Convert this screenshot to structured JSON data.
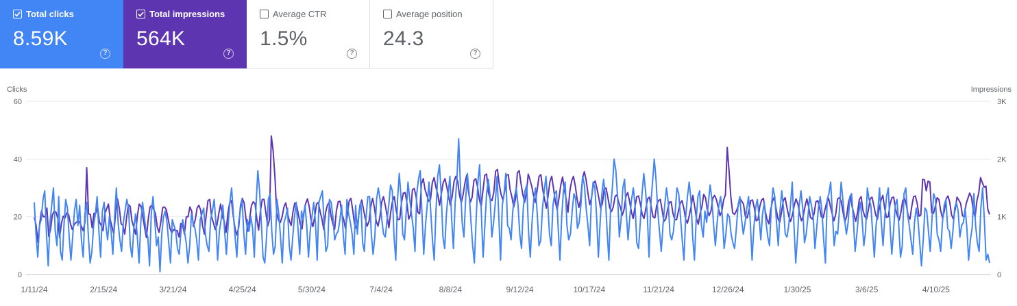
{
  "cards": [
    {
      "label": "Total clicks",
      "value": "8.59K",
      "checked": true,
      "color": "#4285f4"
    },
    {
      "label": "Total impressions",
      "value": "564K",
      "checked": true,
      "color": "#5e35b1"
    },
    {
      "label": "Average CTR",
      "value": "1.5%",
      "checked": false,
      "color": "#ffffff"
    },
    {
      "label": "Average position",
      "value": "24.3",
      "checked": false,
      "color": "#ffffff"
    }
  ],
  "help_glyph": "?",
  "colors": {
    "clicks": "#4285f4",
    "impressions": "#5e35b1",
    "grid": "#e8eaed",
    "axis_text": "#5f6368"
  },
  "chart_data": {
    "type": "line",
    "left_axis": {
      "label": "Clicks",
      "ticks": [
        0,
        20,
        40,
        60
      ],
      "range": [
        0,
        60
      ]
    },
    "right_axis": {
      "label": "Impressions",
      "ticks": [
        "0",
        "1K",
        "2K",
        "3K"
      ],
      "range": [
        0,
        3000
      ]
    },
    "x_tick_labels": [
      "1/11/24",
      "2/15/24",
      "3/21/24",
      "4/25/24",
      "5/30/24",
      "7/4/24",
      "8/8/24",
      "9/12/24",
      "10/17/24",
      "11/21/24",
      "12/26/24",
      "1/30/25",
      "3/6/25",
      "4/10/25"
    ],
    "x_start": "2024-01-11",
    "x_end": "2025-05-07",
    "grid": true,
    "series": [
      {
        "name": "Clicks",
        "axis": "left",
        "color": "#4285f4",
        "values": [
          25,
          14,
          6,
          17,
          19,
          26,
          29,
          14,
          3,
          18,
          24,
          30,
          15,
          10,
          27,
          8,
          5,
          17,
          26,
          23,
          13,
          5,
          13,
          22,
          26,
          17,
          24,
          12,
          6,
          21,
          25,
          13,
          4,
          8,
          17,
          21,
          27,
          15,
          6,
          22,
          25,
          17,
          12,
          20,
          15,
          7,
          20,
          30,
          18,
          12,
          8,
          18,
          22,
          26,
          23,
          10,
          6,
          16,
          21,
          13,
          4,
          18,
          25,
          20,
          15,
          13,
          3,
          21,
          27,
          19,
          10,
          13,
          1,
          14,
          20,
          22,
          18,
          11,
          4,
          19,
          17,
          15,
          9,
          7,
          15,
          19,
          15,
          11,
          4,
          10,
          21,
          18,
          16,
          12,
          5,
          19,
          21,
          23,
          14,
          10,
          8,
          19,
          22,
          26,
          18,
          5,
          15,
          19,
          24,
          15,
          7,
          17,
          25,
          30,
          21,
          13,
          6,
          18,
          22,
          26,
          14,
          7,
          19,
          15,
          20,
          16,
          6,
          24,
          36,
          29,
          18,
          6,
          4,
          13,
          26,
          28,
          15,
          7,
          10,
          26,
          21,
          13,
          4,
          18,
          20,
          23,
          10,
          5,
          13,
          20,
          25,
          16,
          7,
          22,
          19,
          24,
          17,
          6,
          15,
          20,
          25,
          18,
          5,
          25,
          27,
          29,
          17,
          8,
          10,
          26,
          25,
          20,
          12,
          14,
          15,
          19,
          24,
          13,
          7,
          26,
          21,
          18,
          14,
          7,
          24,
          14,
          22,
          25,
          11,
          8,
          20,
          27,
          27,
          14,
          7,
          13,
          26,
          30,
          26,
          19,
          14,
          13,
          19,
          24,
          31,
          29,
          13,
          5,
          26,
          35,
          27,
          14,
          12,
          22,
          32,
          26,
          21,
          16,
          8,
          28,
          33,
          36,
          21,
          7,
          17,
          24,
          32,
          22,
          12,
          5,
          22,
          34,
          38,
          28,
          13,
          9,
          21,
          28,
          34,
          19,
          9,
          25,
          33,
          47,
          31,
          18,
          13,
          26,
          35,
          28,
          19,
          10,
          4,
          19,
          32,
          38,
          21,
          6,
          17,
          28,
          33,
          27,
          13,
          18,
          25,
          34,
          20,
          5,
          24,
          28,
          35,
          17,
          16,
          12,
          22,
          27,
          30,
          24,
          14,
          9,
          23,
          29,
          31,
          15,
          6,
          18,
          26,
          30,
          21,
          10,
          12,
          23,
          29,
          34,
          25,
          14,
          10,
          24,
          28,
          29,
          16,
          5,
          20,
          29,
          32,
          17,
          12,
          14,
          22,
          28,
          26,
          16,
          18,
          24,
          34,
          31,
          23,
          17,
          10,
          26,
          32,
          30,
          20,
          6,
          18,
          28,
          33,
          27,
          15,
          5,
          23,
          30,
          40,
          36,
          27,
          13,
          19,
          30,
          33,
          21,
          12,
          20,
          26,
          30,
          24,
          11,
          9,
          18,
          28,
          35,
          29,
          21,
          6,
          24,
          32,
          40,
          33,
          22,
          15,
          8,
          17,
          24,
          30,
          25,
          14,
          12,
          15,
          22,
          30,
          28,
          20,
          12,
          5,
          20,
          27,
          32,
          26,
          13,
          5,
          19,
          27,
          29,
          17,
          13,
          22,
          18,
          25,
          31,
          26,
          17,
          10,
          18,
          24,
          27,
          20,
          9,
          14,
          21,
          20,
          14,
          11,
          9,
          16,
          24,
          27,
          19,
          14,
          18,
          23,
          27,
          18,
          5,
          16,
          23,
          26,
          20,
          12,
          21,
          25,
          18,
          13,
          10,
          23,
          30,
          27,
          18,
          10,
          22,
          29,
          23,
          14,
          13,
          17,
          24,
          32,
          17,
          4,
          13,
          24,
          29,
          23,
          11,
          14,
          20,
          27,
          24,
          20,
          9,
          16,
          23,
          27,
          22,
          12,
          4,
          26,
          28,
          32,
          21,
          10,
          15,
          14,
          22,
          32,
          26,
          19,
          14,
          18,
          27,
          28,
          19,
          8,
          14,
          21,
          25,
          19,
          10,
          15,
          30,
          26,
          24,
          15,
          6,
          17,
          22,
          30,
          18,
          10,
          20,
          27,
          30,
          17,
          7,
          15,
          24,
          26,
          17,
          6,
          10,
          28,
          30,
          21,
          17,
          12,
          7,
          18,
          23,
          19,
          11,
          3,
          12,
          23,
          22,
          15,
          8,
          19,
          28,
          26,
          14,
          12,
          8,
          18,
          24,
          26,
          16,
          15,
          9,
          15,
          23,
          25,
          22,
          13,
          17,
          18,
          23,
          16,
          5,
          12,
          16,
          28,
          17,
          11,
          8,
          23,
          30,
          19,
          5,
          7,
          4
        ]
      },
      {
        "name": "Impressions",
        "axis": "right",
        "color": "#5e35b1",
        "values": [
          990,
          860,
          560,
          880,
          1100,
          1000,
          1000,
          1150,
          660,
          780,
          1030,
          1100,
          1080,
          970,
          640,
          880,
          1010,
          980,
          1070,
          1040,
          880,
          780,
          860,
          900,
          920,
          910,
          840,
          760,
          900,
          1850,
          1050,
          1040,
          810,
          1060,
          1060,
          1170,
          910,
          850,
          760,
          1050,
          1140,
          1220,
          950,
          820,
          700,
          1100,
          1310,
          1150,
          880,
          850,
          700,
          980,
          1210,
          1180,
          930,
          820,
          700,
          1020,
          1220,
          1180,
          1010,
          810,
          640,
          960,
          1170,
          1200,
          1130,
          1050,
          820,
          730,
          920,
          1160,
          1170,
          1120,
          960,
          800,
          720,
          780,
          760,
          760,
          650,
          880,
          870,
          700,
          1000,
          1000,
          1170,
          1100,
          830,
          950,
          1150,
          1200,
          1110,
          850,
          700,
          1020,
          1280,
          1300,
          1000,
          900,
          780,
          860,
          1060,
          1220,
          1000,
          920,
          730,
          1060,
          1240,
          1280,
          1010,
          790,
          680,
          820,
          1200,
          1320,
          1240,
          970,
          750,
          950,
          1190,
          1260,
          1230,
          960,
          770,
          1100,
          1300,
          1300,
          1070,
          840,
          950,
          2400,
          2150,
          1700,
          1070,
          940,
          900,
          1000,
          1170,
          1240,
          1060,
          930,
          850,
          1090,
          1240,
          1200,
          1040,
          870,
          790,
          1080,
          1230,
          1310,
          1170,
          940,
          830,
          1000,
          1220,
          1250,
          1090,
          960,
          780,
          1070,
          1200,
          1250,
          1020,
          880,
          780,
          1110,
          1260,
          1270,
          1050,
          960,
          800,
          1030,
          1270,
          1320,
          1120,
          870,
          800,
          940,
          1200,
          1290,
          1120,
          960,
          840,
          920,
          1180,
          1320,
          1160,
          920,
          840,
          990,
          1250,
          1350,
          1200,
          1020,
          810,
          1080,
          1270,
          1350,
          1120,
          950,
          960,
          1250,
          1410,
          1420,
          1230,
          960,
          1040,
          1470,
          1490,
          1360,
          1080,
          1050,
          1570,
          1660,
          1470,
          1370,
          1270,
          1300,
          1590,
          1680,
          1510,
          1390,
          1200,
          1400,
          1590,
          1660,
          1520,
          1350,
          1200,
          1360,
          1610,
          1700,
          1620,
          1380,
          1240,
          1380,
          1580,
          1720,
          1430,
          1250,
          1340,
          1630,
          1660,
          1520,
          1300,
          1180,
          1460,
          1720,
          1740,
          1420,
          1310,
          1280,
          1430,
          1790,
          1820,
          1560,
          1390,
          1290,
          1440,
          1720,
          1730,
          1470,
          1340,
          1170,
          1310,
          1760,
          1800,
          1580,
          1390,
          1250,
          1400,
          1740,
          1640,
          1520,
          1360,
          1250,
          1480,
          1700,
          1730,
          1480,
          1310,
          1150,
          1360,
          1610,
          1700,
          1490,
          1260,
          1120,
          1320,
          1550,
          1690,
          1470,
          1310,
          1080,
          1440,
          1620,
          1700,
          1540,
          1310,
          1160,
          1300,
          1660,
          1780,
          1640,
          1410,
          1210,
          1330,
          1570,
          1620,
          1490,
          1330,
          1150,
          1230,
          1490,
          1500,
          1340,
          1160,
          1090,
          1170,
          1350,
          1380,
          1250,
          1160,
          1030,
          1130,
          1350,
          1420,
          1270,
          1090,
          970,
          1170,
          1350,
          1360,
          1220,
          1040,
          970,
          1140,
          1310,
          1340,
          1170,
          1000,
          980,
          1200,
          1280,
          1300,
          1120,
          920,
          960,
          1120,
          1250,
          1260,
          1060,
          950,
          950,
          1100,
          1230,
          1280,
          1150,
          960,
          890,
          1020,
          1170,
          1370,
          1180,
          970,
          870,
          1060,
          1170,
          1390,
          1330,
          1120,
          1020,
          1100,
          1320,
          1370,
          1300,
          1170,
          1020,
          1090,
          1290,
          1380,
          2200,
          1800,
          1340,
          1070,
          1040,
          1100,
          1180,
          1320,
          1270,
          1220,
          1010,
          980,
          1110,
          1280,
          1290,
          1150,
          930,
          950,
          1180,
          1290,
          1320,
          1100,
          950,
          880,
          1120,
          1270,
          1340,
          1140,
          970,
          900,
          1080,
          1280,
          1330,
          1160,
          1010,
          920,
          1030,
          1190,
          1310,
          1230,
          1060,
          930,
          1010,
          1180,
          1310,
          1170,
          990,
          960,
          1050,
          1260,
          1280,
          1170,
          1000,
          980,
          1120,
          1250,
          1320,
          1180,
          1050,
          930,
          1050,
          1310,
          1330,
          1270,
          1080,
          910,
          1010,
          1250,
          1360,
          1180,
          1050,
          920,
          1070,
          1300,
          1350,
          1110,
          1010,
          960,
          1120,
          1310,
          1340,
          1200,
          1040,
          960,
          1140,
          1290,
          1370,
          1150,
          990,
          1000,
          1220,
          1330,
          1340,
          1140,
          1020,
          940,
          1080,
          1280,
          1320,
          1200,
          1020,
          960,
          1180,
          1350,
          1360,
          1230,
          1010,
          1030,
          1650,
          1640,
          1450,
          1620,
          1600,
          1070,
          1060,
          1180,
          1330,
          1300,
          1100,
          980,
          1100,
          1310,
          1360,
          1250,
          1030,
          960,
          1130,
          1340,
          1290,
          1230,
          1020,
          1000,
          1220,
          1320,
          1410,
          1340,
          1100,
          1000,
          1280,
          1410,
          1680,
          1590,
          1510,
          1530,
          1130,
          1040
        ]
      }
    ]
  }
}
